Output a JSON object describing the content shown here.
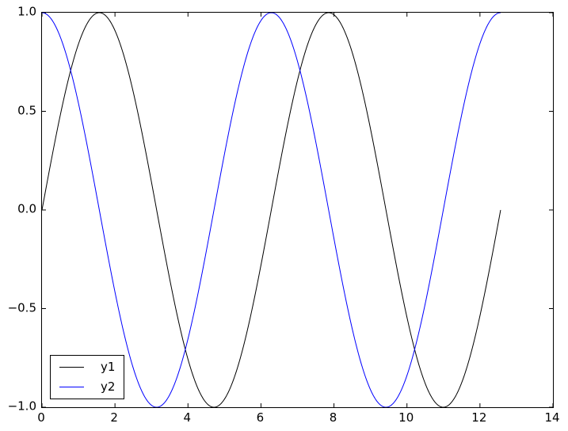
{
  "figure": {
    "background_color": "#ffffff",
    "frame_color": "#000000",
    "tick_color": "#000000",
    "text_color": "#000000"
  },
  "chart_data": {
    "type": "line",
    "title": "",
    "xlabel": "",
    "ylabel": "",
    "xlim": [
      0,
      14
    ],
    "ylim": [
      -1.0,
      1.0
    ],
    "grid": false,
    "tick_direction": "in",
    "ticks_on_all_sides": true,
    "x_ticks": {
      "values": [
        0,
        2,
        4,
        6,
        8,
        10,
        12,
        14
      ],
      "labels": [
        "0",
        "2",
        "4",
        "6",
        "8",
        "10",
        "12",
        "14"
      ]
    },
    "y_ticks": {
      "values": [
        1.0,
        0.5,
        0.0,
        -0.5,
        -1.0
      ],
      "labels": [
        "1.0",
        "0.5",
        "0.0",
        "−0.5",
        "−1.0"
      ]
    },
    "legend": {
      "position": "lower left",
      "entries": [
        {
          "label": "y1",
          "color": "#000000"
        },
        {
          "label": "y2",
          "color": "#0000ff"
        }
      ]
    },
    "series": [
      {
        "name": "y1",
        "fn": "sin",
        "color": "#000000",
        "line_width": 1,
        "x_start": 0,
        "x_end": 12.566,
        "key_points": {
          "x": [
            0,
            1.571,
            3.142,
            4.712,
            6.283,
            7.854,
            9.425,
            10.996,
            12.566
          ],
          "y": [
            0,
            1,
            0,
            -1,
            0,
            1,
            0,
            -1,
            0
          ]
        }
      },
      {
        "name": "y2",
        "fn": "cos",
        "color": "#0000ff",
        "line_width": 1,
        "x_start": 0,
        "x_end": 12.566,
        "key_points": {
          "x": [
            0,
            1.571,
            3.142,
            4.712,
            6.283,
            7.854,
            9.425,
            10.996,
            12.566
          ],
          "y": [
            1,
            0,
            -1,
            0,
            1,
            0,
            -1,
            0,
            1
          ]
        }
      }
    ]
  }
}
